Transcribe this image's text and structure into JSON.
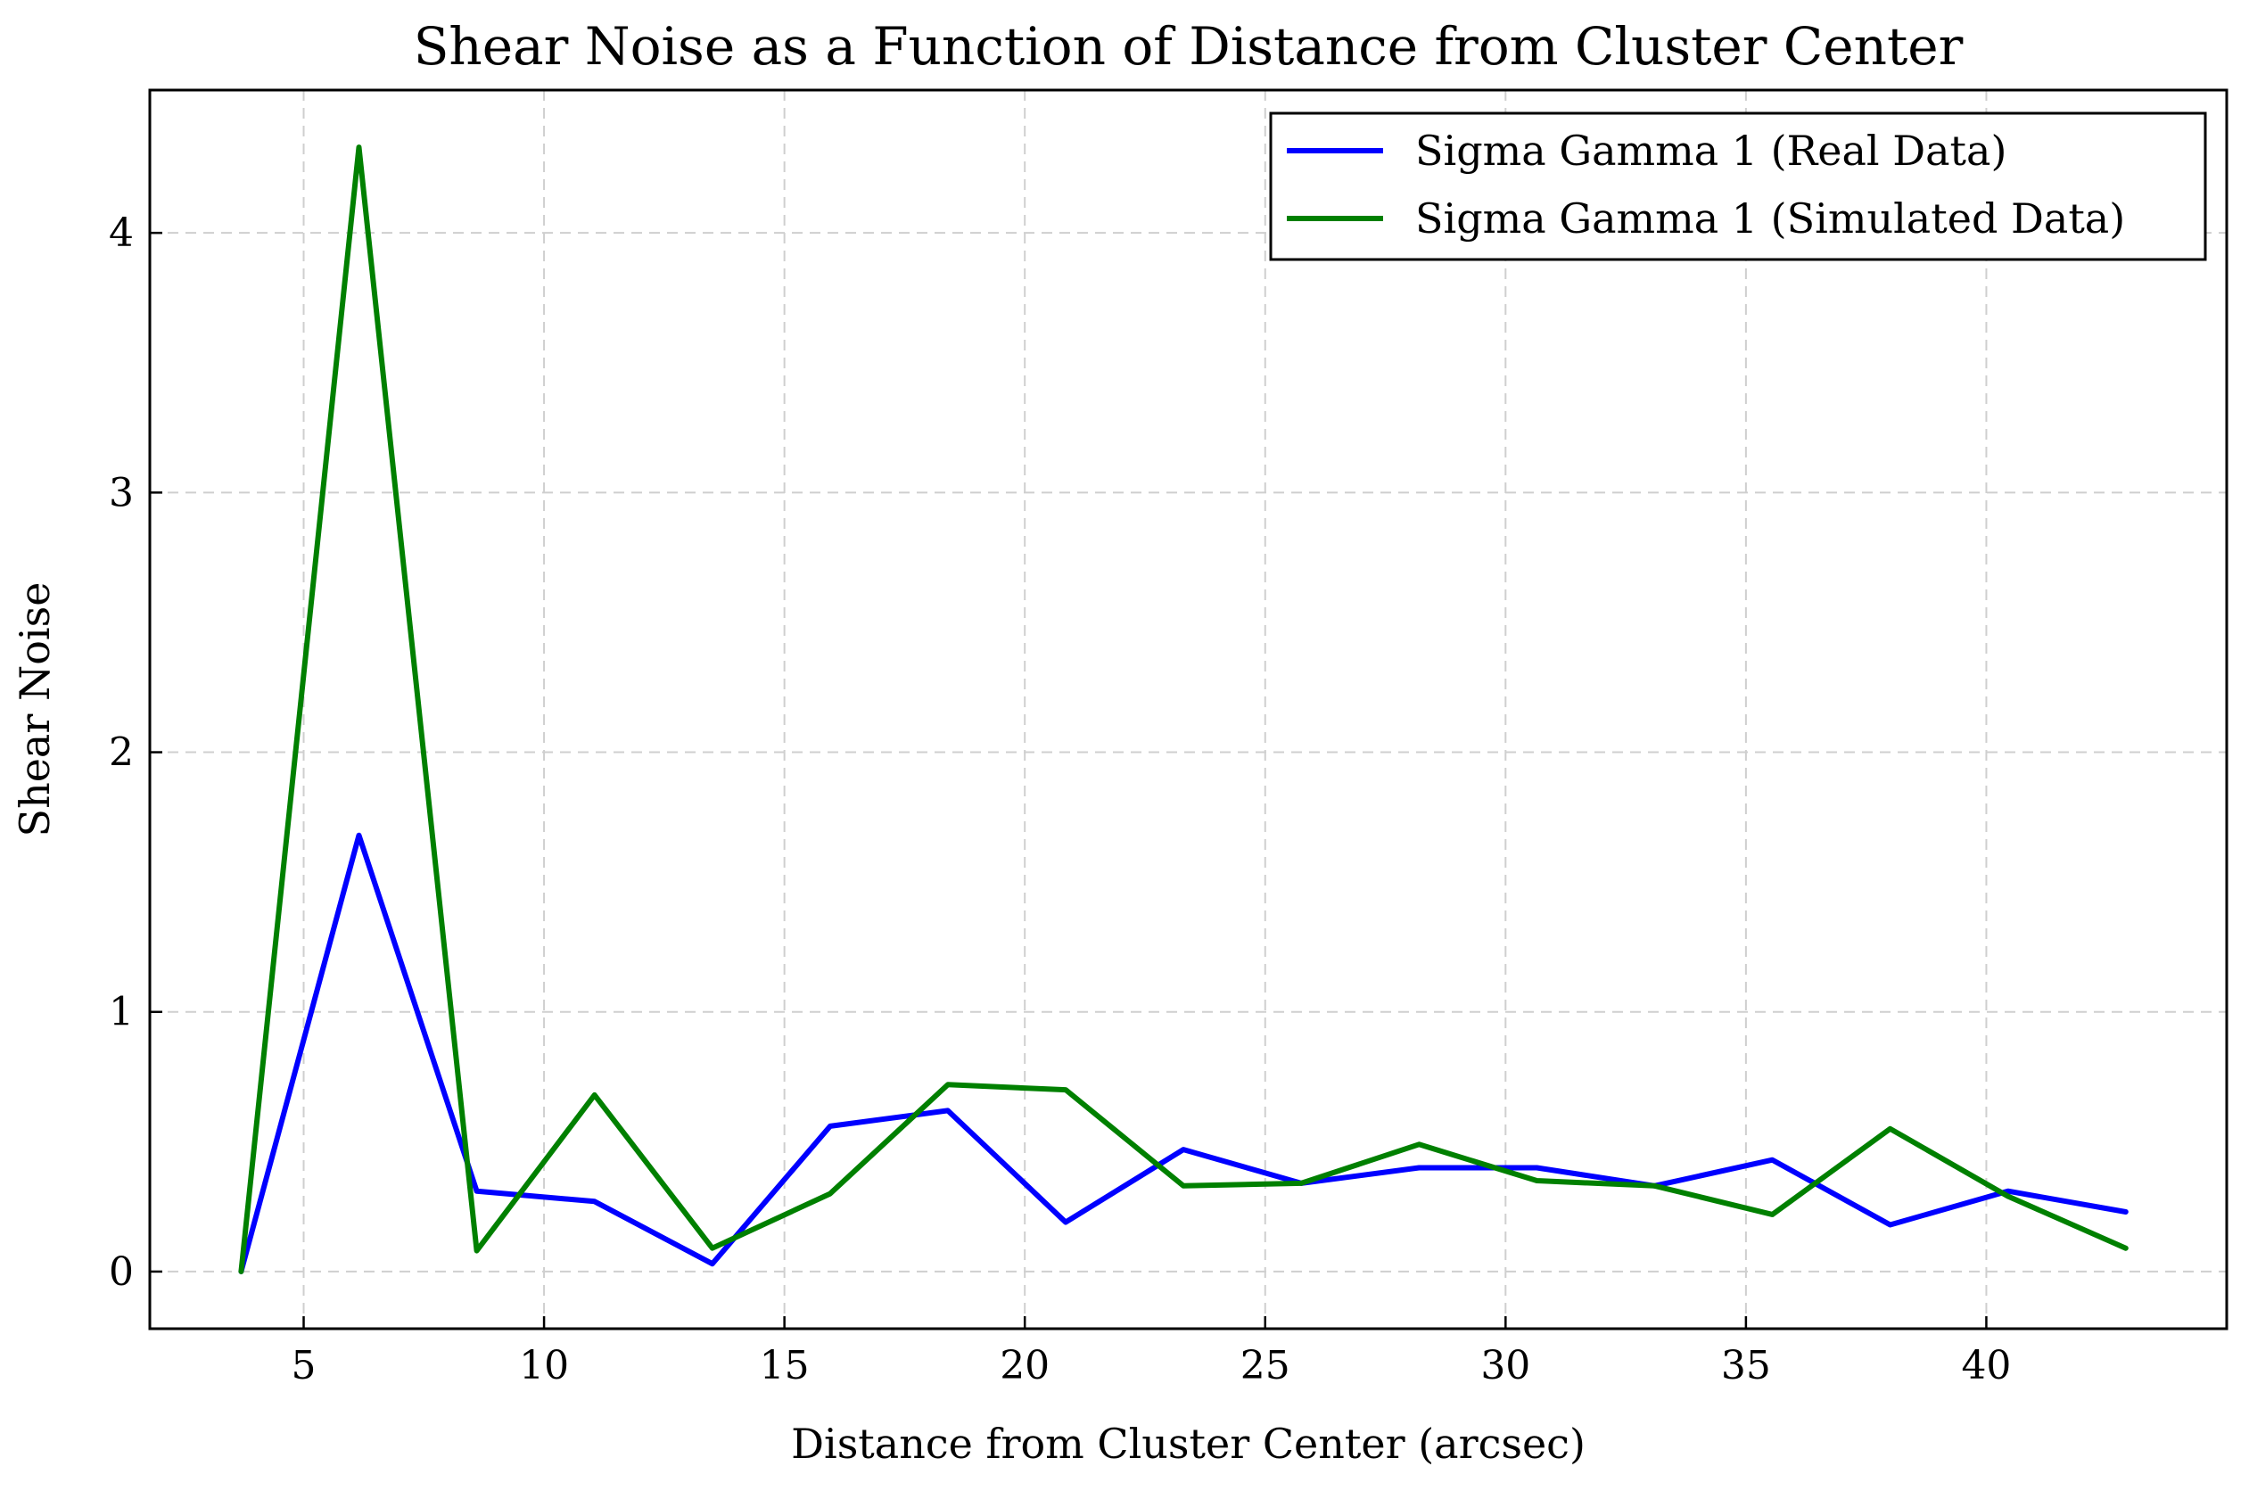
{
  "chart_data": {
    "type": "line",
    "title": "Shear Noise as a Function of Distance from Cluster Center",
    "xlabel": "Distance from Cluster Center (arcsec)",
    "ylabel": "Shear Noise",
    "xlim": [
      1.8,
      45
    ],
    "ylim": [
      -0.22,
      4.55
    ],
    "xticks": [
      5,
      10,
      15,
      20,
      25,
      30,
      35,
      40
    ],
    "yticks": [
      0,
      1,
      2,
      3,
      4
    ],
    "grid": true,
    "legend_position": "top-right",
    "x": [
      3.7,
      6.15,
      8.6,
      11.05,
      13.5,
      15.95,
      18.4,
      20.85,
      23.3,
      25.75,
      28.2,
      30.65,
      33.1,
      35.55,
      38.0,
      40.45,
      42.9
    ],
    "series": [
      {
        "name": "Sigma Gamma 1 (Real Data)",
        "color": "#0000ff",
        "values": [
          0.0,
          1.68,
          0.31,
          0.27,
          0.03,
          0.56,
          0.62,
          0.19,
          0.47,
          0.34,
          0.4,
          0.4,
          0.33,
          0.43,
          0.18,
          0.31,
          0.23
        ]
      },
      {
        "name": "Sigma Gamma 1 (Simulated Data)",
        "color": "#008000",
        "values": [
          0.0,
          4.33,
          0.08,
          0.68,
          0.09,
          0.3,
          0.72,
          0.7,
          0.33,
          0.34,
          0.49,
          0.35,
          0.33,
          0.22,
          0.55,
          0.29,
          0.09
        ]
      }
    ]
  }
}
